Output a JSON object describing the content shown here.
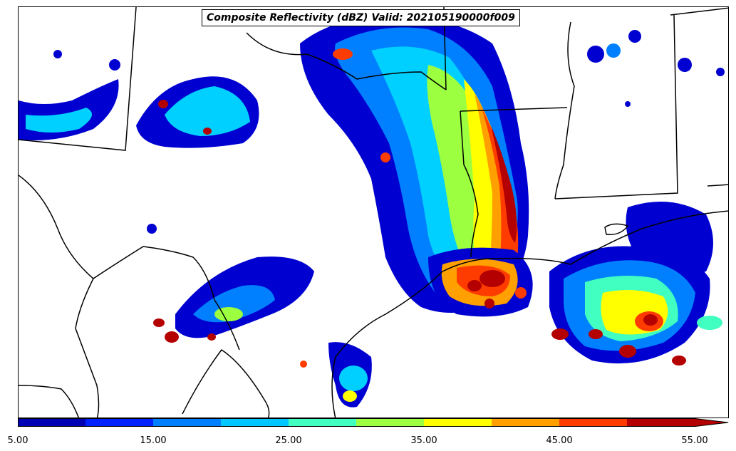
{
  "title": "Composite Reflectivity (dBZ) Valid: 202105190000f009",
  "colorbar": {
    "ticks": [
      "5.00",
      "15.00",
      "25.00",
      "35.00",
      "45.00",
      "55.00"
    ],
    "colors": [
      "#0000b4",
      "#0022ff",
      "#0080ff",
      "#00c8ff",
      "#40ffc0",
      "#9cff40",
      "#ffff00",
      "#ffa000",
      "#ff3c00",
      "#b40000"
    ],
    "extend": "max"
  }
}
